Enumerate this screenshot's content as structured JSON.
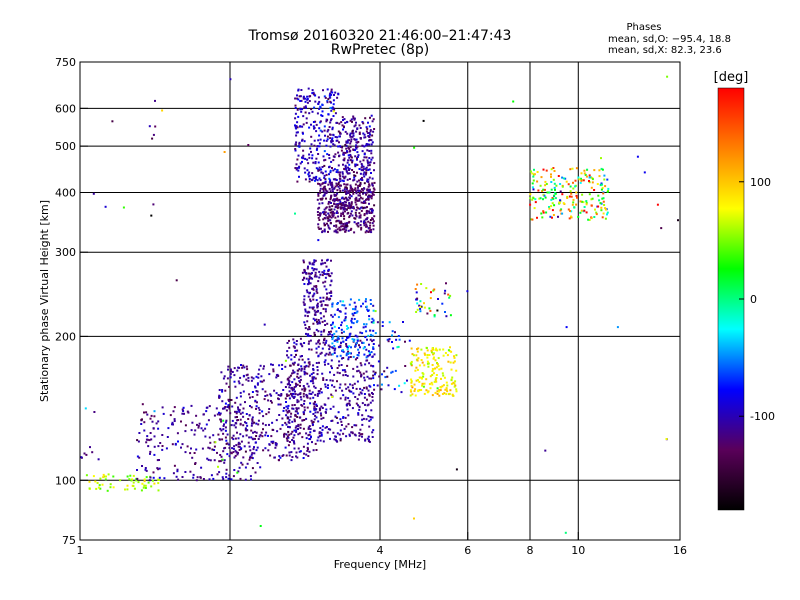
{
  "chart_data": {
    "type": "scatter",
    "title": "Tromsø 20160320 21:46:00–21:47:43",
    "subtitle": "RwPretec (8p)",
    "xlabel": "Frequency [MHz]",
    "ylabel": "Stationary phase Virtual Height [km]",
    "x_scale": "log",
    "y_scale": "log",
    "xlim": [
      1,
      16
    ],
    "ylim": [
      75,
      750
    ],
    "x_ticks": [
      1,
      2,
      4,
      6,
      8,
      10,
      16
    ],
    "x_tick_labels": [
      "1",
      "2",
      "4",
      "6",
      "8",
      "10",
      "16"
    ],
    "y_ticks": [
      75,
      100,
      200,
      300,
      400,
      500,
      600,
      750
    ],
    "y_tick_labels": [
      "75",
      "100",
      "200",
      "300",
      "400",
      "500",
      "600",
      "750"
    ],
    "grid": true,
    "colorbar": {
      "label": "[deg]",
      "range": [
        -180,
        180
      ],
      "ticks": [
        100,
        0,
        -100
      ],
      "tick_labels": [
        "100",
        "0",
        "-100"
      ],
      "colors": [
        "#000000",
        "#5a005a",
        "#0000ff",
        "#00ffff",
        "#00ff00",
        "#ffff00",
        "#ff8000",
        "#ff0000"
      ]
    },
    "info": {
      "heading": "Phases",
      "line_o": "mean, sd,O: −95.4, 18.8",
      "line_x": "mean, sd,X:  82.3, 23.6"
    },
    "clusters": [
      {
        "fmin": 1.0,
        "fmax": 1.45,
        "hmin": 95,
        "hmax": 103,
        "count": 60,
        "phase": 60,
        "phase_sd": 15
      },
      {
        "fmin": 1.0,
        "fmax": 1.1,
        "hmin": 110,
        "hmax": 118,
        "count": 8,
        "phase": -110,
        "phase_sd": 8
      },
      {
        "fmin": 1.3,
        "fmax": 2.3,
        "hmin": 100,
        "hmax": 145,
        "count": 260,
        "phase": -110,
        "phase_sd": 14
      },
      {
        "fmin": 1.9,
        "fmax": 3.0,
        "hmin": 110,
        "hmax": 175,
        "count": 420,
        "phase": -110,
        "phase_sd": 14
      },
      {
        "fmin": 2.6,
        "fmax": 3.9,
        "hmin": 120,
        "hmax": 200,
        "count": 480,
        "phase": -110,
        "phase_sd": 14
      },
      {
        "fmin": 2.8,
        "fmax": 3.2,
        "hmin": 200,
        "hmax": 290,
        "count": 200,
        "phase": -110,
        "phase_sd": 12
      },
      {
        "fmin": 3.2,
        "fmax": 3.9,
        "hmin": 180,
        "hmax": 240,
        "count": 160,
        "phase": -70,
        "phase_sd": 22
      },
      {
        "fmin": 3.0,
        "fmax": 3.9,
        "hmin": 330,
        "hmax": 420,
        "count": 480,
        "phase": -120,
        "phase_sd": 14
      },
      {
        "fmin": 2.7,
        "fmax": 3.3,
        "hmin": 420,
        "hmax": 660,
        "count": 300,
        "phase": -100,
        "phase_sd": 18
      },
      {
        "fmin": 3.3,
        "fmax": 3.9,
        "hmin": 420,
        "hmax": 580,
        "count": 260,
        "phase": -110,
        "phase_sd": 16
      },
      {
        "fmin": 4.6,
        "fmax": 5.7,
        "hmin": 150,
        "hmax": 190,
        "count": 170,
        "phase": 85,
        "phase_sd": 18
      },
      {
        "fmin": 3.8,
        "fmax": 4.6,
        "hmin": 150,
        "hmax": 215,
        "count": 50,
        "phase": -80,
        "phase_sd": 30
      },
      {
        "fmin": 4.7,
        "fmax": 5.6,
        "hmin": 220,
        "hmax": 260,
        "count": 40,
        "phase": 0,
        "phase_sd": 90
      },
      {
        "fmin": 8.0,
        "fmax": 11.5,
        "hmin": 350,
        "hmax": 450,
        "count": 220,
        "phase": 60,
        "phase_sd": 70
      },
      {
        "fmin": 1.38,
        "fmax": 1.42,
        "hmin": 320,
        "hmax": 650,
        "count": 6,
        "phase": -110,
        "phase_sd": 20
      },
      {
        "fmin": 1.0,
        "fmax": 16.0,
        "hmin": 75,
        "hmax": 700,
        "count": 50,
        "phase": 0,
        "phase_sd": 110
      }
    ]
  }
}
